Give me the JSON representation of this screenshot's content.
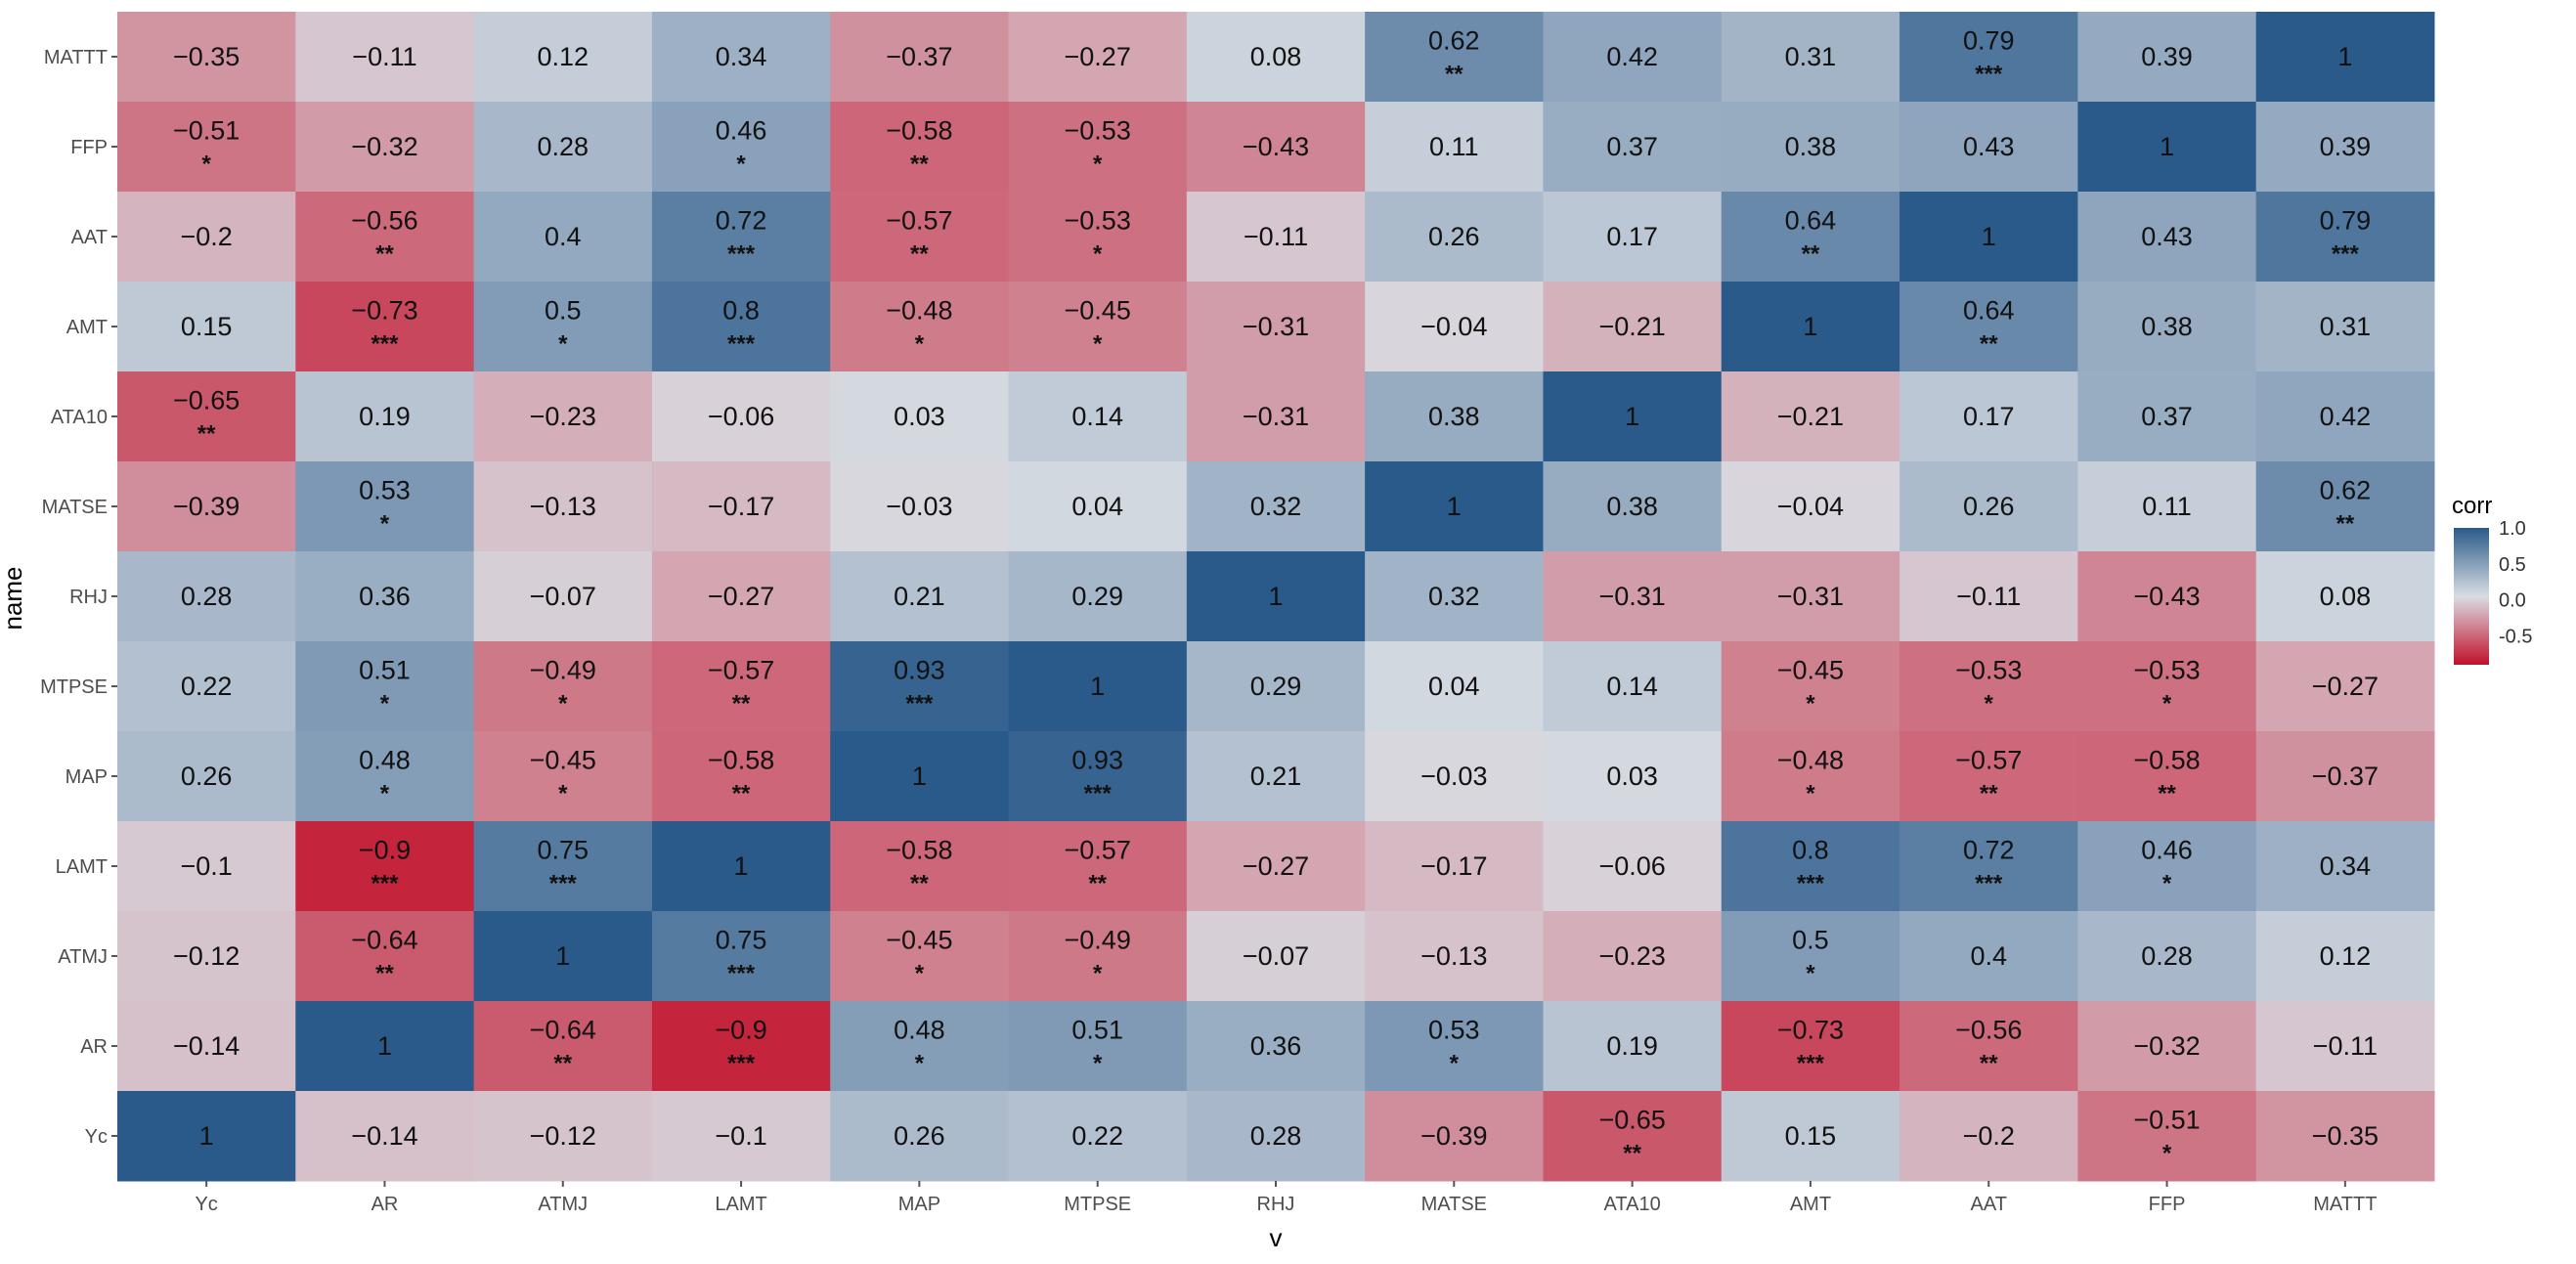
{
  "chart_data": {
    "type": "heatmap",
    "xlabel": "v",
    "ylabel": "name",
    "x_categories": [
      "Yc",
      "AR",
      "ATMJ",
      "LAMT",
      "MAP",
      "MTPSE",
      "RHJ",
      "MATSE",
      "ATA10",
      "AMT",
      "AAT",
      "FFP",
      "MATTT"
    ],
    "y_categories_top_to_bottom": [
      "MATTT",
      "FFP",
      "AAT",
      "AMT",
      "ATA10",
      "MATSE",
      "RHJ",
      "MTPSE",
      "MAP",
      "LAMT",
      "ATMJ",
      "AR",
      "Yc"
    ],
    "values": [
      [
        -0.35,
        -0.11,
        0.12,
        0.34,
        -0.37,
        -0.27,
        0.08,
        0.62,
        0.42,
        0.31,
        0.79,
        0.39,
        1
      ],
      [
        -0.51,
        -0.32,
        0.28,
        0.46,
        -0.58,
        -0.53,
        -0.43,
        0.11,
        0.37,
        0.38,
        0.43,
        1,
        0.39
      ],
      [
        -0.2,
        -0.56,
        0.4,
        0.72,
        -0.57,
        -0.53,
        -0.11,
        0.26,
        0.17,
        0.64,
        1,
        0.43,
        0.79
      ],
      [
        0.15,
        -0.73,
        0.5,
        0.8,
        -0.48,
        -0.45,
        -0.31,
        -0.04,
        -0.21,
        1,
        0.64,
        0.38,
        0.31
      ],
      [
        -0.65,
        0.19,
        -0.23,
        -0.06,
        0.03,
        0.14,
        -0.31,
        0.38,
        1,
        -0.21,
        0.17,
        0.37,
        0.42
      ],
      [
        -0.39,
        0.53,
        -0.13,
        -0.17,
        -0.03,
        0.04,
        0.32,
        1,
        0.38,
        -0.04,
        0.26,
        0.11,
        0.62
      ],
      [
        0.28,
        0.36,
        -0.07,
        -0.27,
        0.21,
        0.29,
        1,
        0.32,
        -0.31,
        -0.31,
        -0.11,
        -0.43,
        0.08
      ],
      [
        0.22,
        0.51,
        -0.49,
        -0.57,
        0.93,
        1,
        0.29,
        0.04,
        0.14,
        -0.45,
        -0.53,
        -0.53,
        -0.27
      ],
      [
        0.26,
        0.48,
        -0.45,
        -0.58,
        1,
        0.93,
        0.21,
        -0.03,
        0.03,
        -0.48,
        -0.57,
        -0.58,
        -0.37
      ],
      [
        -0.1,
        -0.9,
        0.75,
        1,
        -0.58,
        -0.57,
        -0.27,
        -0.17,
        -0.06,
        0.8,
        0.72,
        0.46,
        0.34
      ],
      [
        -0.12,
        -0.64,
        1,
        0.75,
        -0.45,
        -0.49,
        -0.07,
        -0.13,
        -0.23,
        0.5,
        0.4,
        0.28,
        0.12
      ],
      [
        -0.14,
        1,
        -0.64,
        -0.9,
        0.48,
        0.51,
        0.36,
        0.53,
        0.19,
        -0.73,
        -0.56,
        -0.32,
        -0.11
      ],
      [
        1,
        -0.14,
        -0.12,
        -0.1,
        0.26,
        0.22,
        0.28,
        -0.39,
        -0.65,
        0.15,
        -0.2,
        -0.51,
        -0.35
      ]
    ],
    "significance": [
      [
        "",
        "",
        "",
        "",
        "",
        "",
        "",
        "**",
        "",
        "",
        "***",
        "",
        ""
      ],
      [
        "*",
        "",
        "",
        "*",
        "**",
        "*",
        "",
        "",
        "",
        "",
        "",
        "",
        ""
      ],
      [
        "",
        "**",
        "",
        "***",
        "**",
        "*",
        "",
        "",
        "",
        "**",
        "",
        "",
        "***"
      ],
      [
        "",
        "***",
        "*",
        "***",
        "*",
        "*",
        "",
        "",
        "",
        "",
        "**",
        "",
        ""
      ],
      [
        "**",
        "",
        "",
        "",
        "",
        "",
        "",
        "",
        "",
        "",
        "",
        "",
        ""
      ],
      [
        "",
        "*",
        "",
        "",
        "",
        "",
        "",
        "",
        "",
        "",
        "",
        "",
        "**"
      ],
      [
        "",
        "",
        "",
        "",
        "",
        "",
        "",
        "",
        "",
        "",
        "",
        "",
        ""
      ],
      [
        "",
        "*",
        "*",
        "**",
        "***",
        "",
        "",
        "",
        "",
        "*",
        "*",
        "*",
        ""
      ],
      [
        "",
        "*",
        "*",
        "**",
        "",
        "***",
        "",
        "",
        "",
        "*",
        "**",
        "**",
        ""
      ],
      [
        "",
        "***",
        "***",
        "",
        "**",
        "**",
        "",
        "",
        "",
        "***",
        "***",
        "*",
        ""
      ],
      [
        "",
        "**",
        "",
        "***",
        "*",
        "*",
        "",
        "",
        "",
        "*",
        "",
        "",
        ""
      ],
      [
        "",
        "",
        "**",
        "***",
        "*",
        "*",
        "",
        "*",
        "",
        "***",
        "**",
        "",
        ""
      ],
      [
        "",
        "",
        "",
        "",
        "",
        "",
        "",
        "",
        "**",
        "",
        "",
        "*",
        ""
      ]
    ],
    "legend": {
      "title": "corr",
      "position": "right",
      "ticks": [
        "1.0",
        "0.5",
        "0.0",
        "-0.5"
      ]
    },
    "colors": {
      "low": "#c2102a",
      "mid": "#d9dde3",
      "high": "#2a5a8a",
      "panel_background": "#ebebeb"
    }
  }
}
